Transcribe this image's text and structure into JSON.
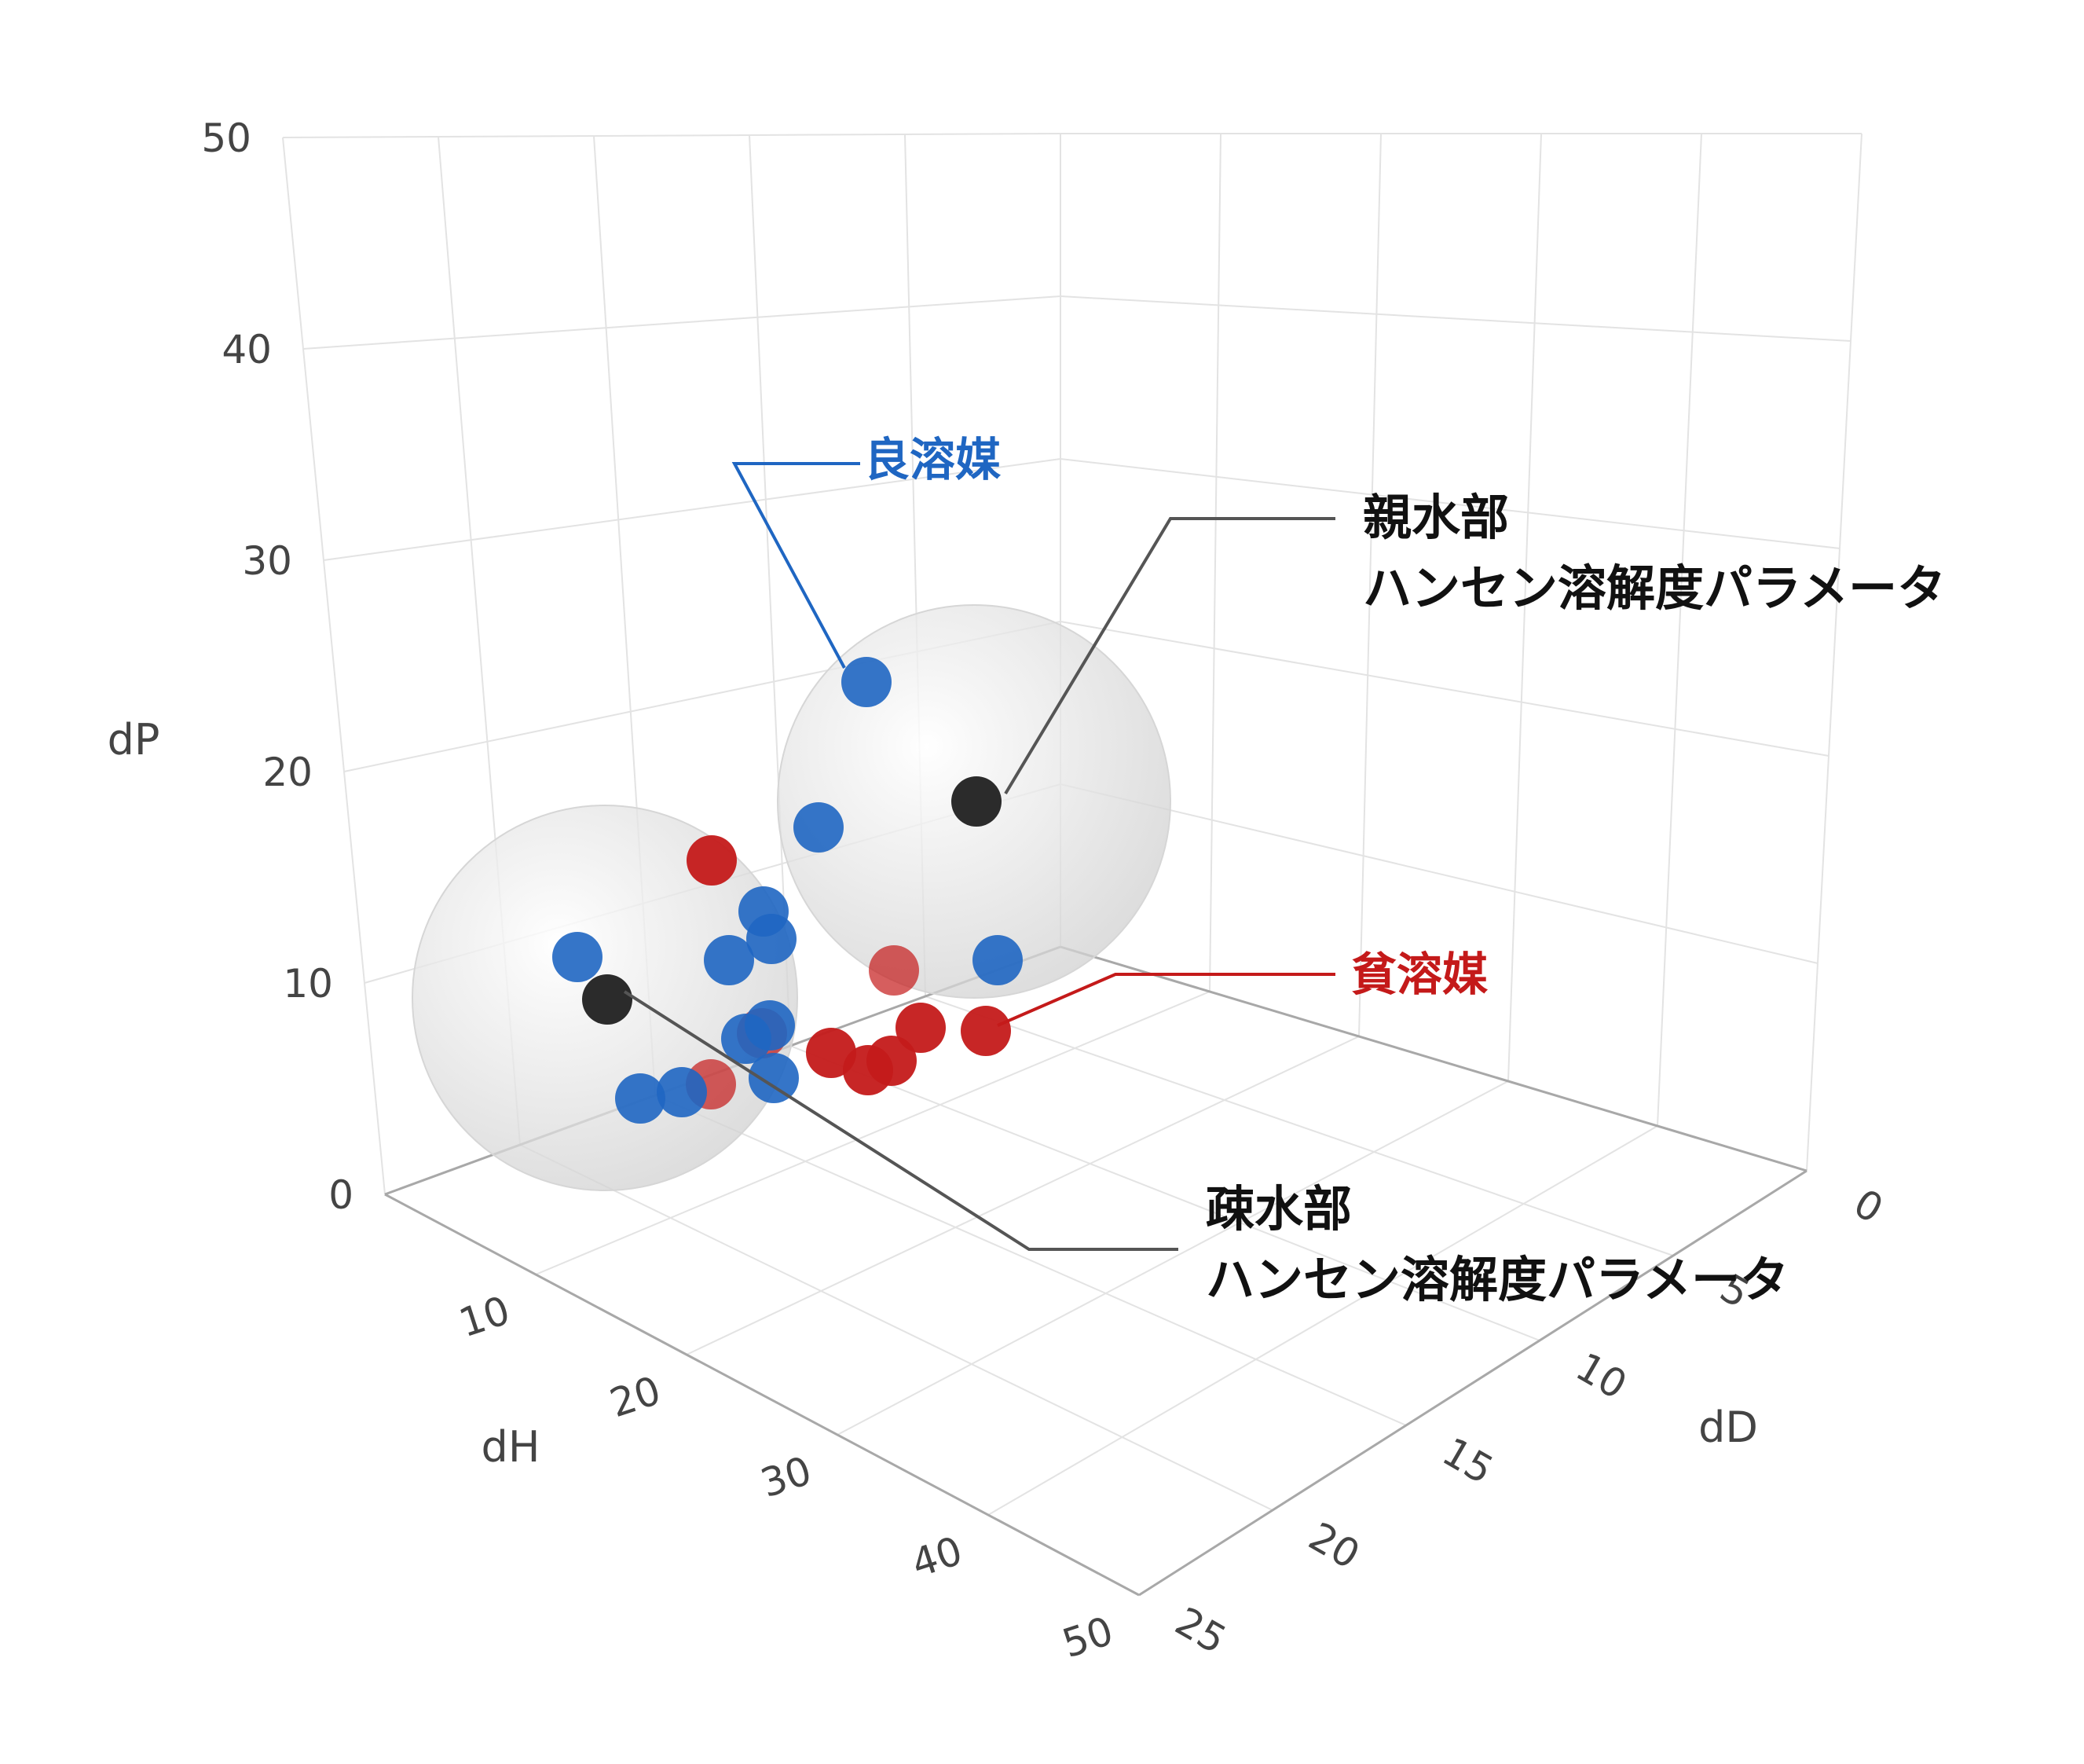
{
  "chart_data": {
    "type": "scatter",
    "title": "",
    "dimensions": 3,
    "axes": {
      "dP": {
        "label": "dP",
        "range": [
          0,
          50
        ],
        "ticks": [
          "0",
          "10",
          "20",
          "30",
          "40",
          "50"
        ]
      },
      "dH": {
        "label": "dH",
        "range": [
          0,
          50
        ],
        "ticks": [
          "10",
          "20",
          "30",
          "40",
          "50"
        ]
      },
      "dD": {
        "label": "dD",
        "range": [
          0,
          25
        ],
        "ticks": [
          "0",
          "5",
          "10",
          "15",
          "20",
          "25"
        ]
      }
    },
    "grid": true,
    "colors": {
      "good": "#1f66c2",
      "poor": "#c41a1a",
      "center": "#2b2b2b",
      "sphere": "#d4d4d4"
    },
    "spheres": [
      {
        "id": "hydrophilic",
        "center": {
          "dD": 1,
          "dH": 4,
          "dP": 20
        },
        "radius": 9.5
      },
      {
        "id": "hydrophobic",
        "center": {
          "dD": 17,
          "dH": 3,
          "dP": 10
        },
        "radius": 9
      }
    ],
    "good_solvents": [
      {
        "dD": 2,
        "dH": 12,
        "dP": 27
      },
      {
        "dD": 3,
        "dH": 12,
        "dP": 19
      },
      {
        "dD": 1,
        "dH": 8,
        "dP": 13
      },
      {
        "dD": 8,
        "dH": 10,
        "dP": 16
      },
      {
        "dD": 8,
        "dH": 11,
        "dP": 14
      },
      {
        "dD": 10,
        "dH": 8,
        "dP": 13
      },
      {
        "dD": 18,
        "dH": 4,
        "dP": 13
      },
      {
        "dD": 10,
        "dH": 14,
        "dP": 9
      },
      {
        "dD": 12,
        "dH": 6,
        "dP": 8
      },
      {
        "dD": 10,
        "dH": 14,
        "dP": 6
      },
      {
        "dD": 13,
        "dH": 10,
        "dP": 6
      },
      {
        "dD": 14,
        "dH": 11,
        "dP": 5
      }
    ],
    "poor_solvents": [
      {
        "dD": 11,
        "dH": 6,
        "dP": 18
      },
      {
        "dD": 5,
        "dH": 7,
        "dP": 12
      },
      {
        "dD": 11,
        "dH": 11,
        "dP": 9
      },
      {
        "dD": 2,
        "dH": 16,
        "dP": 9
      },
      {
        "dD": 2,
        "dH": 14,
        "dP": 8
      },
      {
        "dD": 5,
        "dH": 18,
        "dP": 8
      },
      {
        "dD": 4,
        "dH": 18,
        "dP": 7
      },
      {
        "dD": 7,
        "dH": 18,
        "dP": 8
      },
      {
        "dD": 15,
        "dH": 11,
        "dP": 6
      }
    ],
    "annotations": [
      {
        "id": "good",
        "text": "良溶媒",
        "color": "#1f66c2"
      },
      {
        "id": "poor",
        "text": "貧溶媒",
        "color": "#c41a1a"
      },
      {
        "id": "hydrophilic",
        "lines": [
          "親水部",
          "ハンセン溶解度パラメータ"
        ],
        "color": "#111111"
      },
      {
        "id": "hydrophobic",
        "lines": [
          "疎水部",
          "ハンセン溶解度パラメータ"
        ],
        "color": "#111111"
      }
    ]
  }
}
